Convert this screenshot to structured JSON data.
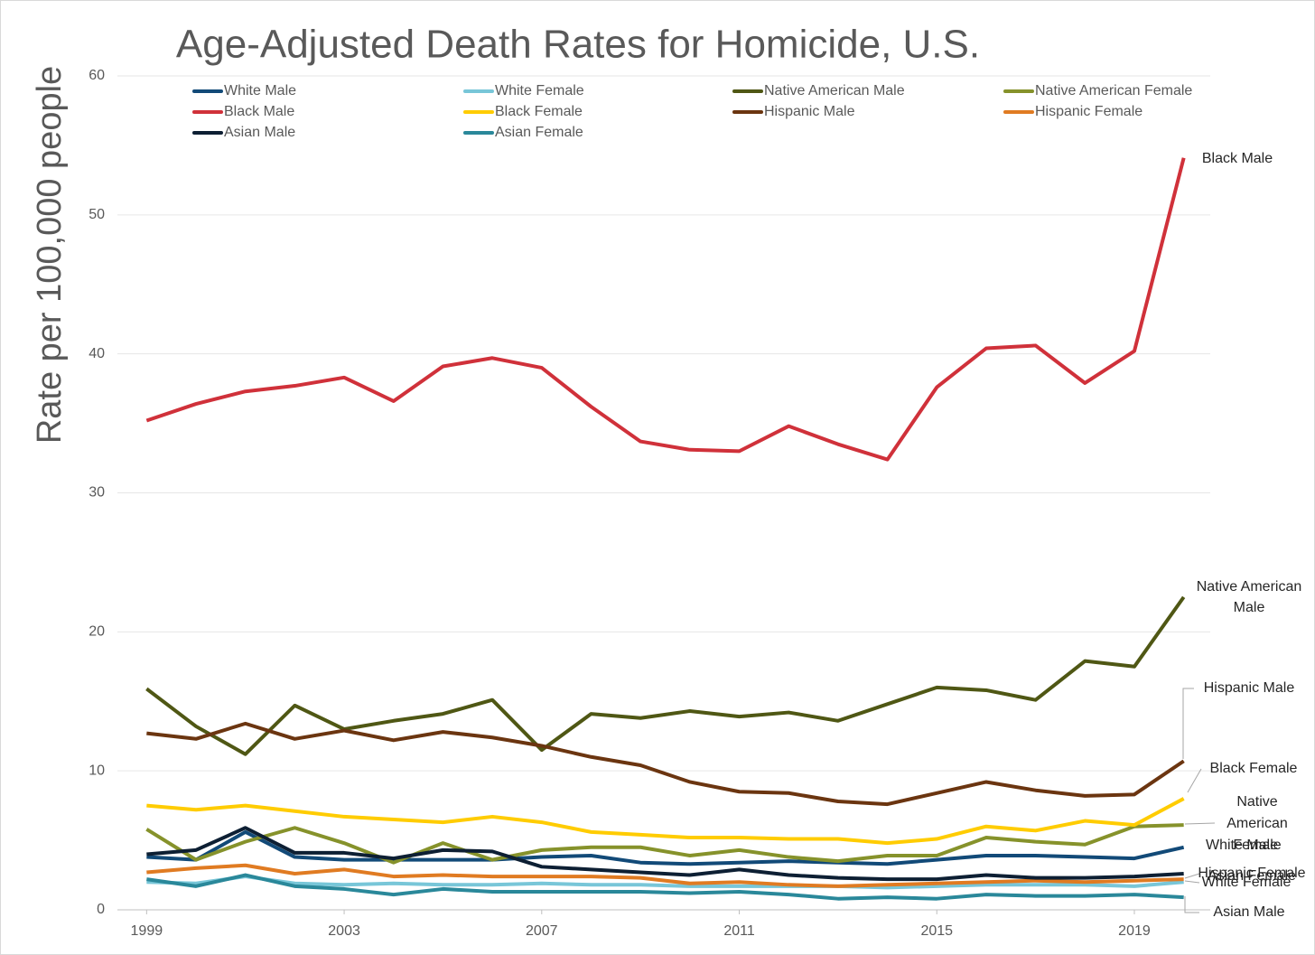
{
  "chart_data": {
    "type": "line",
    "title": "Age-Adjusted Death Rates for Homicide, U.S.",
    "y_label": "Rate per 100,000 people",
    "x": [
      1999,
      2000,
      2001,
      2002,
      2003,
      2004,
      2005,
      2006,
      2007,
      2008,
      2009,
      2010,
      2011,
      2012,
      2013,
      2014,
      2015,
      2016,
      2017,
      2018,
      2019,
      2020
    ],
    "xlim": [
      1998.5,
      2020.5
    ],
    "xticks": [
      1999,
      2003,
      2007,
      2011,
      2015,
      2019
    ],
    "ylim": [
      0,
      60
    ],
    "yticks": [
      0,
      10,
      20,
      30,
      40,
      50,
      60
    ],
    "grid": true,
    "series": [
      {
        "name": "White Male",
        "color": "#124a78",
        "values": [
          3.8,
          3.6,
          5.6,
          3.8,
          3.6,
          3.6,
          3.6,
          3.6,
          3.8,
          3.9,
          3.4,
          3.3,
          3.4,
          3.5,
          3.4,
          3.3,
          3.6,
          3.9,
          3.9,
          3.8,
          3.7,
          4.5
        ]
      },
      {
        "name": "White Female",
        "color": "#78c6d8",
        "values": [
          2.0,
          1.9,
          2.4,
          1.9,
          1.8,
          1.9,
          1.8,
          1.8,
          1.9,
          1.8,
          1.8,
          1.7,
          1.7,
          1.7,
          1.7,
          1.6,
          1.7,
          1.8,
          1.8,
          1.8,
          1.7,
          2.0
        ]
      },
      {
        "name": "Native American Male",
        "color": "#4f5714",
        "values": [
          15.9,
          13.2,
          11.2,
          14.7,
          13.0,
          13.6,
          14.1,
          15.1,
          11.5,
          14.1,
          13.8,
          14.3,
          13.9,
          14.2,
          13.6,
          14.8,
          16.0,
          15.8,
          15.1,
          17.9,
          17.5,
          22.5
        ]
      },
      {
        "name": "Native American Female",
        "color": "#86922b",
        "values": [
          5.8,
          3.6,
          4.9,
          5.9,
          4.8,
          3.4,
          4.8,
          3.6,
          4.3,
          4.5,
          4.5,
          3.9,
          4.3,
          3.8,
          3.5,
          3.9,
          3.9,
          5.2,
          4.9,
          4.7,
          6.0,
          6.1
        ]
      },
      {
        "name": "Black Male",
        "color": "#d0313a",
        "values": [
          35.2,
          36.4,
          37.3,
          37.7,
          38.3,
          36.6,
          39.1,
          39.7,
          39.0,
          36.2,
          33.7,
          33.1,
          33.0,
          34.8,
          33.5,
          32.4,
          37.6,
          40.4,
          40.6,
          37.9,
          40.2,
          54.1
        ]
      },
      {
        "name": "Black Female",
        "color": "#ffcc00",
        "values": [
          7.5,
          7.2,
          7.5,
          7.1,
          6.7,
          6.5,
          6.3,
          6.7,
          6.3,
          5.6,
          5.4,
          5.2,
          5.2,
          5.1,
          5.1,
          4.8,
          5.1,
          6.0,
          5.7,
          6.4,
          6.1,
          8.0
        ]
      },
      {
        "name": "Hispanic Male",
        "color": "#6b3510",
        "values": [
          12.7,
          12.3,
          13.4,
          12.3,
          12.9,
          12.2,
          12.8,
          12.4,
          11.8,
          11.0,
          10.4,
          9.2,
          8.5,
          8.4,
          7.8,
          7.6,
          8.4,
          9.2,
          8.6,
          8.2,
          8.3,
          10.7
        ]
      },
      {
        "name": "Hispanic Female",
        "color": "#e07b22",
        "values": [
          2.7,
          3.0,
          3.2,
          2.6,
          2.9,
          2.4,
          2.5,
          2.4,
          2.4,
          2.4,
          2.3,
          1.9,
          2.0,
          1.8,
          1.7,
          1.8,
          1.9,
          2.0,
          2.1,
          2.0,
          2.1,
          2.2
        ]
      },
      {
        "name": "Asian Male",
        "color": "#0d1f33",
        "values": [
          4.0,
          4.3,
          5.9,
          4.1,
          4.1,
          3.7,
          4.3,
          4.2,
          3.1,
          2.9,
          2.7,
          2.5,
          2.9,
          2.5,
          2.3,
          2.2,
          2.2,
          2.5,
          2.3,
          2.3,
          2.4,
          2.6
        ]
      },
      {
        "name": "Asian Female",
        "color": "#2a889a",
        "values": [
          2.2,
          1.7,
          2.5,
          1.7,
          1.5,
          1.1,
          1.5,
          1.3,
          1.3,
          1.3,
          1.3,
          1.2,
          1.3,
          1.1,
          0.8,
          0.9,
          0.8,
          1.1,
          1.0,
          1.0,
          1.1,
          0.9
        ]
      }
    ]
  }
}
